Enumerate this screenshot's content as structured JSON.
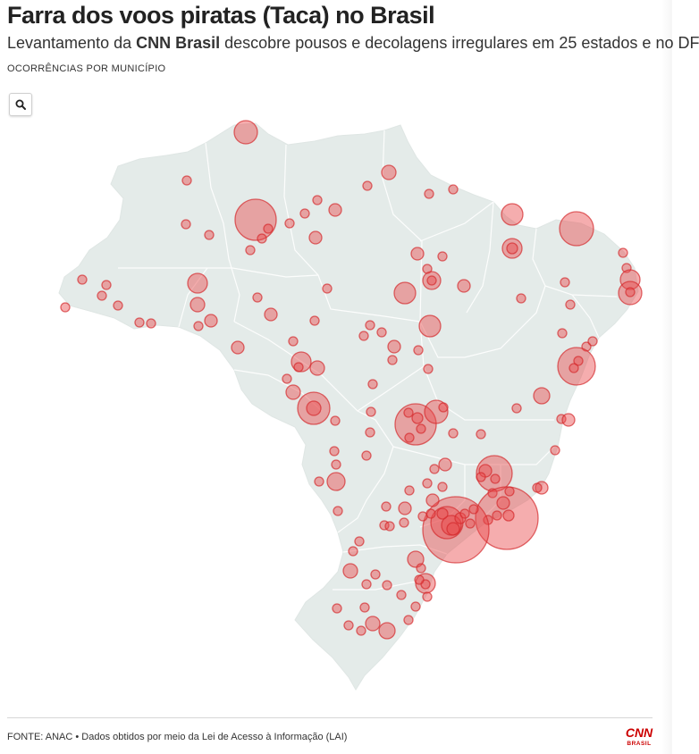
{
  "header": {
    "title": "Farra dos voos piratas (Taca) no Brasil",
    "subtitle_prefix": "Levantamento da ",
    "subtitle_brand": "CNN Brasil",
    "subtitle_suffix": " descobre pousos e decolagens irregulares em 25 estados e no DF",
    "map_label": "OCORRÊNCIAS POR MUNICÍPIO"
  },
  "controls": {
    "search_icon": "search-icon"
  },
  "footer": {
    "source": "FONTE: ANAC • Dados obtidos por meio da Lei de Acesso à Informação (LAI)",
    "logo_top": "CNN",
    "logo_bottom": "BRASIL"
  },
  "colors": {
    "land": "#e4ebe9",
    "borders": "#ffffff",
    "bubble_fill": "#e8494b",
    "bubble_stroke": "#d42a2c",
    "brand_red": "#cc0000"
  }
}
